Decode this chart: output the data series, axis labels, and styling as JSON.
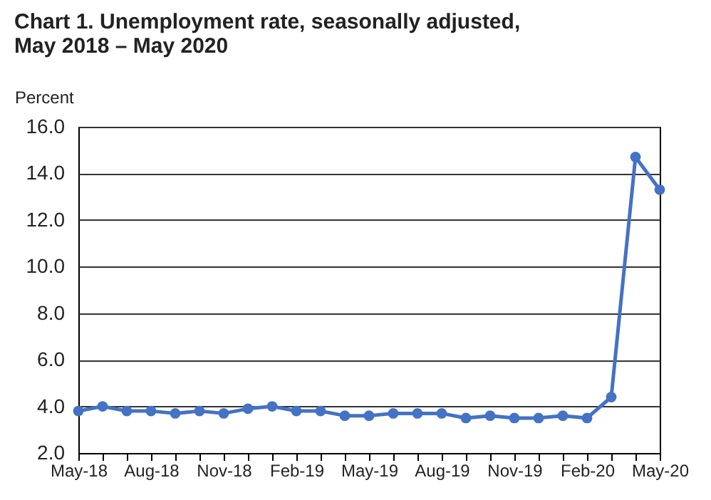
{
  "chart_data": {
    "type": "line",
    "title": [
      "Chart 1. Unemployment rate, seasonally adjusted,",
      "May 2018 – May 2020"
    ],
    "ylabel": "Percent",
    "categories": [
      "May-18",
      null,
      null,
      "Aug-18",
      null,
      null,
      "Nov-18",
      null,
      null,
      "Feb-19",
      null,
      null,
      "May-19",
      null,
      null,
      "Aug-19",
      null,
      null,
      "Nov-19",
      null,
      null,
      "Feb-20",
      null,
      null,
      "May-20"
    ],
    "series": [
      {
        "color": "#4472c4",
        "values": [
          3.8,
          4.0,
          3.8,
          3.8,
          3.7,
          3.8,
          3.7,
          3.9,
          4.0,
          3.8,
          3.8,
          3.6,
          3.6,
          3.7,
          3.7,
          3.7,
          3.5,
          3.6,
          3.5,
          3.5,
          3.6,
          3.5,
          4.4,
          14.7,
          13.3
        ]
      }
    ],
    "ylim": [
      2,
      16
    ],
    "yticks": [
      {
        "value": 2,
        "label": "2.0"
      },
      {
        "value": 4,
        "label": "4.0"
      },
      {
        "value": 6,
        "label": "6.0"
      },
      {
        "value": 8,
        "label": "8.0"
      },
      {
        "value": 10,
        "label": "10.0"
      },
      {
        "value": 12,
        "label": "12.0"
      },
      {
        "value": 14,
        "label": "14.0"
      },
      {
        "value": 16,
        "label": "16.0"
      }
    ],
    "grid": "y",
    "marker": "circle",
    "line_style": "solid"
  }
}
